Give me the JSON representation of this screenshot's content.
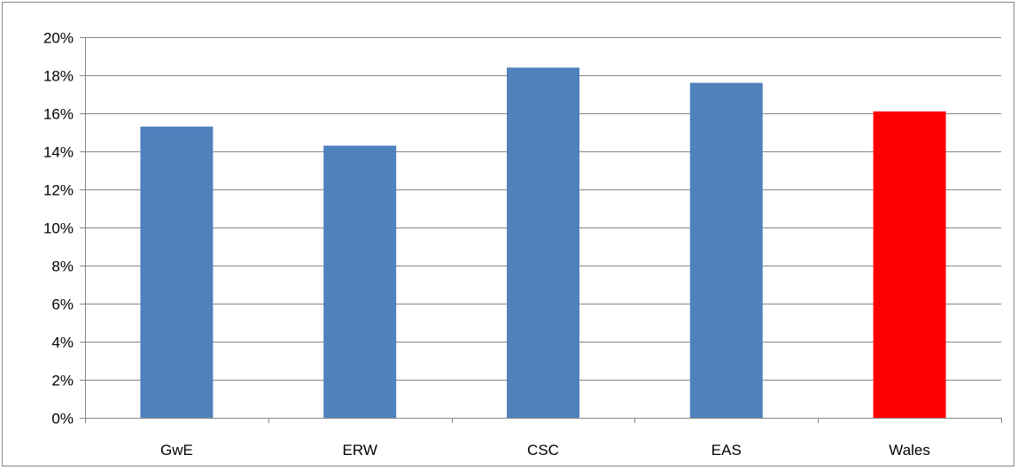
{
  "chart_data": {
    "type": "bar",
    "categories": [
      "GwE",
      "ERW",
      "CSC",
      "EAS",
      "Wales"
    ],
    "values": [
      15.3,
      14.3,
      18.4,
      17.6,
      16.1
    ],
    "value_unit": "%",
    "title": "",
    "xlabel": "",
    "ylabel": "",
    "ylim": [
      0,
      20
    ],
    "yticks": [
      "0%",
      "2%",
      "4%",
      "6%",
      "8%",
      "10%",
      "12%",
      "14%",
      "16%",
      "18%",
      "20%"
    ],
    "grid": true,
    "legend": "none",
    "colors": {
      "default": "#4F81BD",
      "highlight": "#FF0000",
      "grid": "#868686",
      "axis": "#868686"
    },
    "bar_colors": [
      "#4F81BD",
      "#4F81BD",
      "#4F81BD",
      "#4F81BD",
      "#FF0000"
    ]
  }
}
